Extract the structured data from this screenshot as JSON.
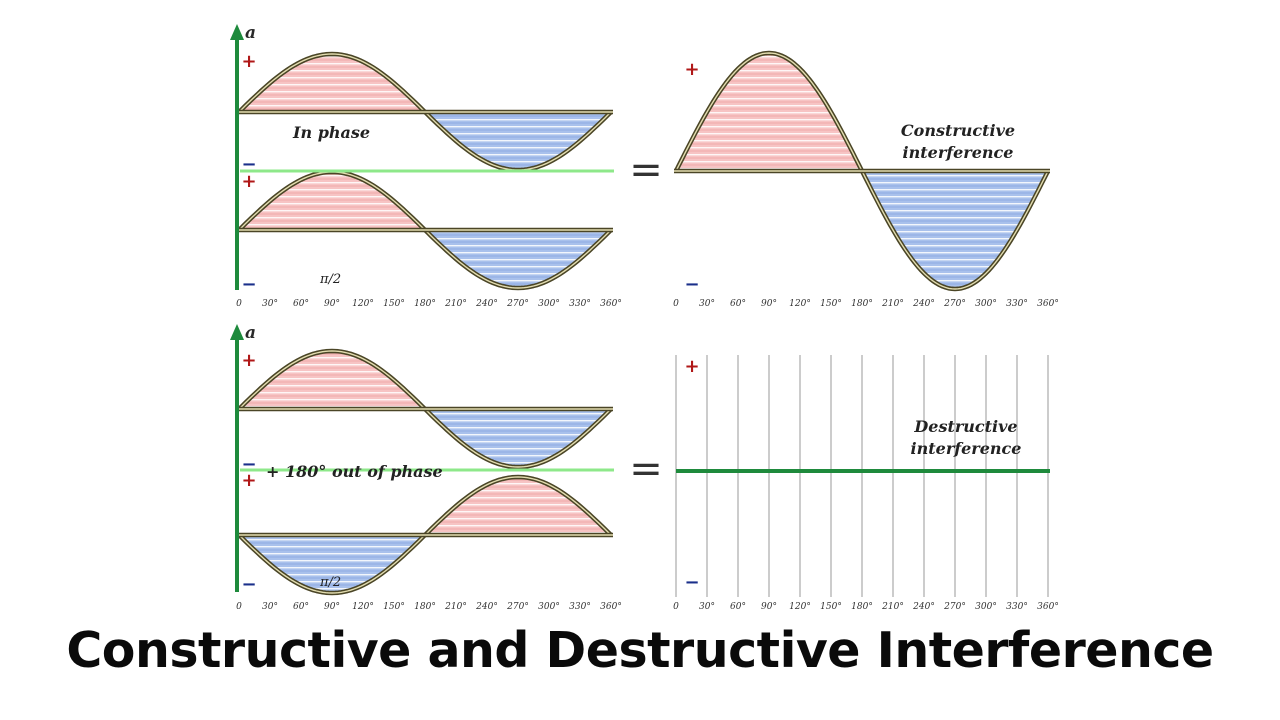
{
  "caption": "Constructive and Destructive Interference",
  "axis_label": "a",
  "plus_sign": "+",
  "minus_sign": "−",
  "equals_sign": "=",
  "pi_label": "π/2",
  "in_phase_label": "In phase",
  "out_phase_label": "+ 180° out of phase",
  "constructive_label": [
    "Constructive",
    "interference"
  ],
  "destructive_label": [
    "Destructive",
    "interference"
  ],
  "degree_ticks": [
    "0",
    "30°",
    "60°",
    "90°",
    "120°",
    "150°",
    "180°",
    "210°",
    "240°",
    "270°",
    "300°",
    "330°",
    "360°"
  ],
  "colors": {
    "axis_green": "#1e8a3c",
    "bright_green": "#8ee88a",
    "positive_fill": "#f2aaaa",
    "negative_fill": "#8fb0e6",
    "wave_outline": "#4a4526",
    "wave_inner": "#e3ddb0",
    "plus_red": "#b01818",
    "minus_blue": "#1a2f8a",
    "grid_gray": "#cccccc"
  }
}
